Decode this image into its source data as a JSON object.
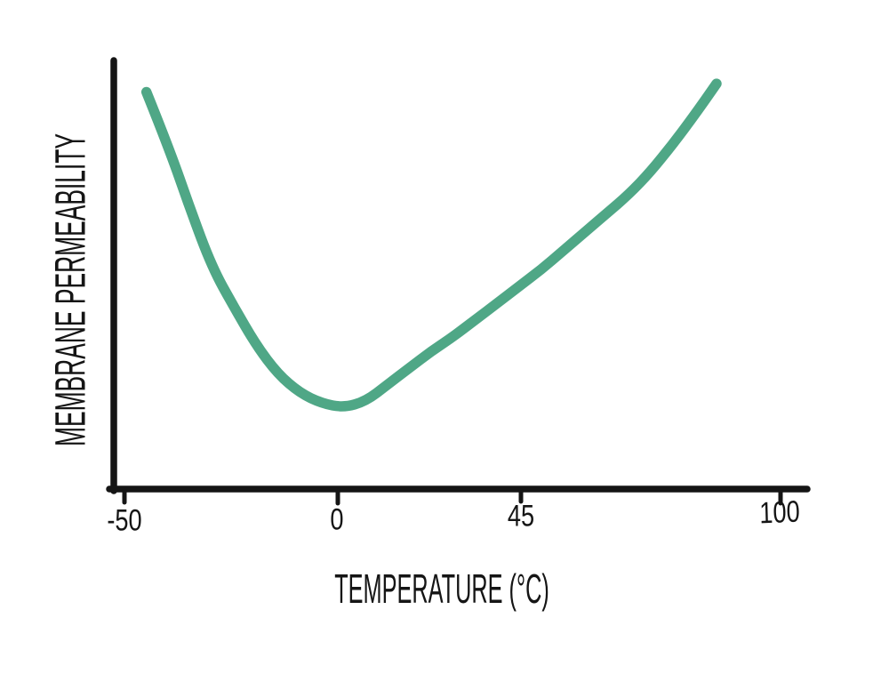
{
  "chart_data": {
    "type": "line",
    "title": "",
    "xlabel": "TEMPERATURE (°C)",
    "ylabel": "MEMBRANE PERMEABILITY",
    "x_tick_labels": [
      "-50",
      "0",
      "45",
      "100"
    ],
    "x_ticks": [
      -50,
      0,
      45,
      100
    ],
    "xlim": [
      -50,
      100
    ],
    "ylim": [
      0,
      100
    ],
    "y_ticks": [],
    "grid": false,
    "legend": false,
    "colors": {
      "curve": "#4FA786",
      "ink": "#151515"
    },
    "series": [
      {
        "name": "membrane permeability",
        "color": "#4FA786",
        "x": [
          -45,
          -40,
          -35,
          -30,
          -25,
          -20,
          -15,
          -10,
          -5,
          0,
          5,
          10,
          15,
          20,
          25,
          30,
          35,
          40,
          45,
          50,
          55,
          60,
          65,
          70,
          75,
          80,
          85
        ],
        "y": [
          95,
          82,
          67,
          53,
          43.5,
          34.5,
          27.5,
          23,
          20.5,
          19.5,
          21,
          25,
          29,
          33,
          36.5,
          40.5,
          44.5,
          48.5,
          52.5,
          57,
          61.5,
          66,
          70.5,
          76,
          82.5,
          89.5,
          97
        ]
      }
    ]
  }
}
